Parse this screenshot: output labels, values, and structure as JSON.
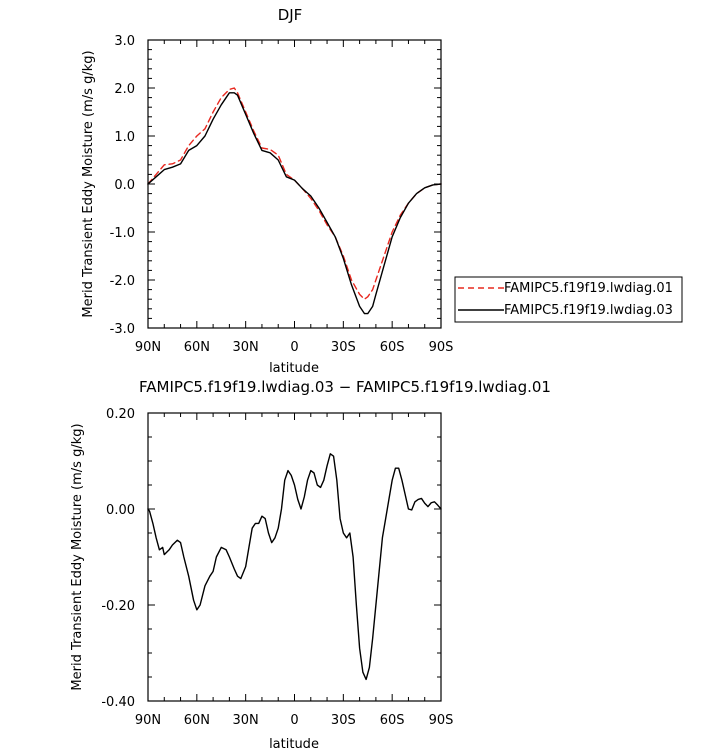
{
  "figure": {
    "top_title": "DJF",
    "bottom_title": "FAMIPC5.f19f19.lwdiag.03 − FAMIPC5.f19f19.lwdiag.01"
  },
  "chart_data": [
    {
      "type": "line",
      "title": "DJF",
      "xlabel": "latitude",
      "ylabel": "Merid Transient Eddy Moisture (m/s g/kg)",
      "x_direction": "north-to-south",
      "xlim": [
        90,
        -90
      ],
      "ylim": [
        -3.0,
        3.0
      ],
      "x_ticks": [
        90,
        60,
        30,
        0,
        -30,
        -60,
        -90
      ],
      "x_tick_labels": [
        "90N",
        "60N",
        "30N",
        "0",
        "30S",
        "60S",
        "90S"
      ],
      "y_ticks": [
        3.0,
        2.0,
        1.0,
        0.0,
        -1.0,
        -2.0,
        -3.0
      ],
      "y_tick_labels": [
        "3.0",
        "2.0",
        "1.0",
        "0.0",
        "-1.0",
        "-2.0",
        "-3.0"
      ],
      "grid": false,
      "legend_position": "right",
      "series": [
        {
          "name": "FAMIPC5.f19f19.lwdiag.01",
          "color": "#e8281f",
          "dash": "dashed",
          "x": [
            90,
            85,
            80,
            75,
            70,
            65,
            60,
            55,
            50,
            45,
            40,
            37,
            35,
            30,
            25,
            20,
            15,
            10,
            5,
            0,
            -5,
            -10,
            -15,
            -20,
            -25,
            -30,
            -35,
            -40,
            -43,
            -45,
            -48,
            -50,
            -55,
            -60,
            -65,
            -70,
            -75,
            -80,
            -85,
            -90
          ],
          "y": [
            0.0,
            0.2,
            0.4,
            0.42,
            0.5,
            0.8,
            1.0,
            1.15,
            1.5,
            1.8,
            1.97,
            2.0,
            1.9,
            1.5,
            1.1,
            0.75,
            0.72,
            0.6,
            0.2,
            0.08,
            -0.1,
            -0.3,
            -0.55,
            -0.85,
            -1.1,
            -1.5,
            -2.0,
            -2.3,
            -2.4,
            -2.35,
            -2.2,
            -2.0,
            -1.5,
            -1.0,
            -0.65,
            -0.4,
            -0.2,
            -0.08,
            -0.02,
            0.0
          ]
        },
        {
          "name": "FAMIPC5.f19f19.lwdiag.03",
          "color": "#000000",
          "dash": "solid",
          "x": [
            90,
            85,
            80,
            75,
            70,
            65,
            60,
            55,
            50,
            45,
            40,
            37,
            35,
            30,
            25,
            20,
            15,
            10,
            5,
            0,
            -5,
            -10,
            -15,
            -20,
            -25,
            -30,
            -35,
            -40,
            -43,
            -45,
            -48,
            -50,
            -55,
            -60,
            -65,
            -70,
            -75,
            -80,
            -85,
            -90
          ],
          "y": [
            0.0,
            0.15,
            0.3,
            0.35,
            0.42,
            0.7,
            0.8,
            1.0,
            1.35,
            1.65,
            1.9,
            1.9,
            1.85,
            1.45,
            1.05,
            0.7,
            0.65,
            0.5,
            0.15,
            0.08,
            -0.1,
            -0.25,
            -0.5,
            -0.8,
            -1.1,
            -1.55,
            -2.1,
            -2.55,
            -2.7,
            -2.7,
            -2.55,
            -2.3,
            -1.7,
            -1.1,
            -0.7,
            -0.4,
            -0.2,
            -0.08,
            -0.02,
            0.0
          ]
        }
      ]
    },
    {
      "type": "line",
      "title": "FAMIPC5.f19f19.lwdiag.03 − FAMIPC5.f19f19.lwdiag.01",
      "xlabel": "latitude",
      "ylabel": "Merid Transient Eddy Moisture (m/s g/kg)",
      "x_direction": "north-to-south",
      "xlim": [
        90,
        -90
      ],
      "ylim": [
        -0.4,
        0.2
      ],
      "x_ticks": [
        90,
        60,
        30,
        0,
        -30,
        -60,
        -90
      ],
      "x_tick_labels": [
        "90N",
        "60N",
        "30N",
        "0",
        "30S",
        "60S",
        "90S"
      ],
      "y_ticks": [
        0.2,
        0.0,
        -0.2,
        -0.4
      ],
      "y_tick_labels": [
        "0.20",
        "0.00",
        "-0.20",
        "-0.40"
      ],
      "grid": false,
      "series": [
        {
          "color": "#000000",
          "dash": "solid",
          "x": [
            90,
            89,
            87,
            85,
            83,
            81,
            80,
            77,
            75,
            72,
            70,
            68,
            65,
            62,
            60,
            58,
            55,
            52,
            50,
            48,
            45,
            42,
            40,
            37,
            35,
            33,
            30,
            28,
            26,
            24,
            22,
            20,
            18,
            16,
            14,
            12,
            10,
            8,
            6,
            4,
            2,
            0,
            -2,
            -4,
            -6,
            -8,
            -10,
            -12,
            -14,
            -16,
            -18,
            -20,
            -22,
            -24,
            -26,
            -28,
            -30,
            -32,
            -34,
            -36,
            -38,
            -40,
            -42,
            -44,
            -46,
            -48,
            -50,
            -52,
            -54,
            -56,
            -58,
            -60,
            -62,
            -64,
            -66,
            -68,
            -70,
            -72,
            -74,
            -76,
            -78,
            -80,
            -82,
            -84,
            -86,
            -88,
            -90
          ],
          "y": [
            0.0,
            -0.005,
            -0.03,
            -0.06,
            -0.085,
            -0.08,
            -0.095,
            -0.085,
            -0.075,
            -0.065,
            -0.07,
            -0.1,
            -0.14,
            -0.19,
            -0.21,
            -0.2,
            -0.16,
            -0.14,
            -0.13,
            -0.1,
            -0.08,
            -0.085,
            -0.1,
            -0.125,
            -0.14,
            -0.145,
            -0.12,
            -0.08,
            -0.04,
            -0.03,
            -0.03,
            -0.015,
            -0.02,
            -0.05,
            -0.07,
            -0.06,
            -0.04,
            0.0,
            0.06,
            0.08,
            0.07,
            0.05,
            0.02,
            0.0,
            0.025,
            0.06,
            0.08,
            0.075,
            0.05,
            0.045,
            0.06,
            0.09,
            0.115,
            0.11,
            0.06,
            -0.02,
            -0.05,
            -0.06,
            -0.05,
            -0.1,
            -0.2,
            -0.29,
            -0.34,
            -0.355,
            -0.33,
            -0.27,
            -0.2,
            -0.13,
            -0.06,
            -0.02,
            0.02,
            0.06,
            0.085,
            0.085,
            0.06,
            0.03,
            0.0,
            -0.002,
            0.015,
            0.02,
            0.022,
            0.012,
            0.005,
            0.013,
            0.015,
            0.008,
            0.0
          ]
        }
      ]
    }
  ]
}
